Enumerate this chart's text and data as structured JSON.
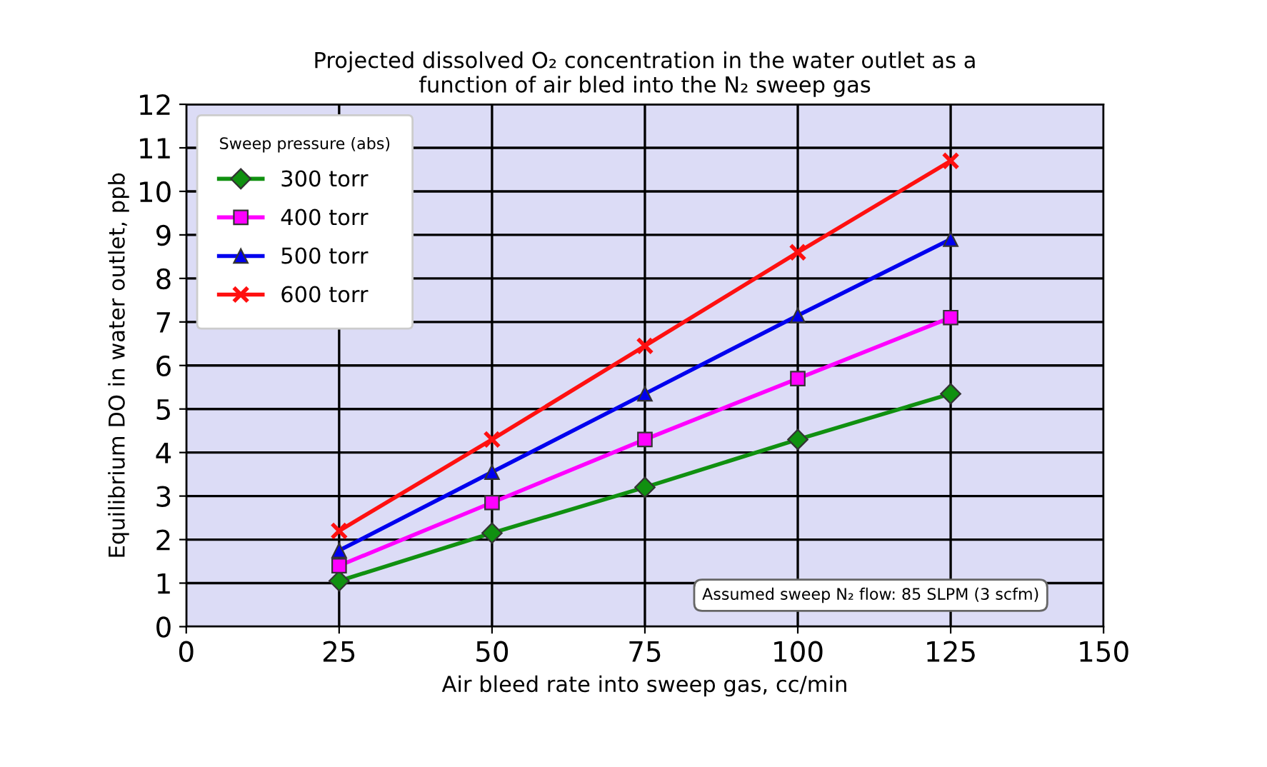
{
  "chart_data": {
    "type": "line",
    "title": "Projected dissolved O₂ concentration in the water outlet as a\nfunction of air bled into the N₂ sweep gas",
    "xlabel": "Air bleed rate into sweep gas, cc/min",
    "ylabel": "Equilibrium DO in water outlet, ppb",
    "legend_title": "Sweep pressure (abs)",
    "x": [
      25,
      50,
      75,
      100,
      125
    ],
    "series": [
      {
        "name": "300 torr",
        "color": "#109010",
        "marker": "diamond",
        "values": [
          1.05,
          2.15,
          3.2,
          4.3,
          5.35
        ]
      },
      {
        "name": "400 torr",
        "color": "#ff00ff",
        "marker": "square",
        "values": [
          1.4,
          2.85,
          4.3,
          5.7,
          7.1
        ]
      },
      {
        "name": "500 torr",
        "color": "#0000ee",
        "marker": "triangle",
        "values": [
          1.75,
          3.55,
          5.35,
          7.15,
          8.9
        ]
      },
      {
        "name": "600 torr",
        "color": "#ff1010",
        "marker": "cross",
        "values": [
          2.2,
          4.3,
          6.45,
          8.6,
          10.7
        ]
      }
    ],
    "xlim": [
      0,
      150
    ],
    "xticks": [
      0,
      25,
      50,
      75,
      100,
      125,
      150
    ],
    "ylim": [
      0,
      12
    ],
    "yticks": [
      0,
      1,
      2,
      3,
      4,
      5,
      6,
      7,
      8,
      9,
      10,
      11,
      12
    ],
    "grid": true,
    "legend": "top left",
    "line_style": "solid",
    "annotations": [
      "Assumed sweep N₂ flow: 85 SLPM (3 scfm)"
    ]
  }
}
